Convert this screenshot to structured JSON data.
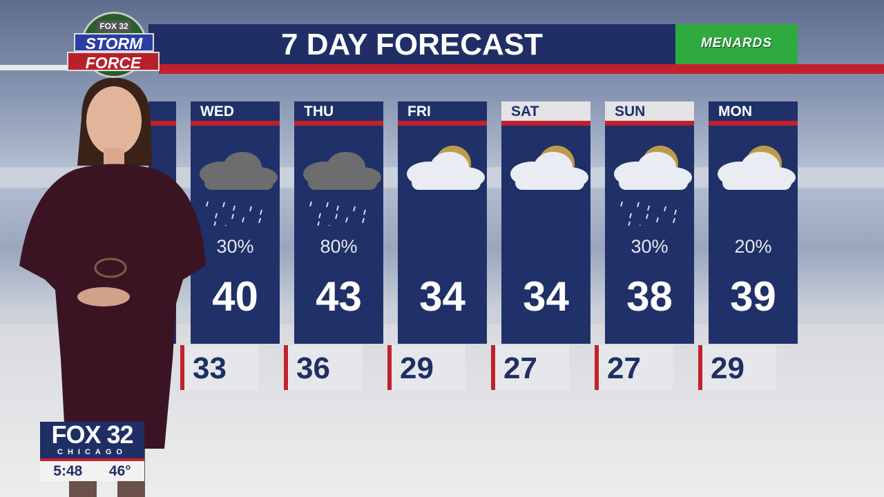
{
  "header": {
    "title": "7 DAY FORECAST",
    "sponsor": "MENARDS",
    "logo": {
      "top": "FOX 32",
      "line1": "STORM",
      "line2": "FORCE"
    }
  },
  "days": [
    {
      "day": "WED",
      "icon": "rain-cloud-icon",
      "pop": "30%",
      "high": "40",
      "low": "33",
      "weekend": false
    },
    {
      "day": "THU",
      "icon": "rain-snow-cloud-icon",
      "pop": "80%",
      "high": "43",
      "low": "36",
      "weekend": false
    },
    {
      "day": "FRI",
      "icon": "partly-cloudy-icon",
      "pop": "",
      "high": "34",
      "low": "29",
      "weekend": false
    },
    {
      "day": "SAT",
      "icon": "partly-cloudy-icon",
      "pop": "",
      "high": "34",
      "low": "27",
      "weekend": true
    },
    {
      "day": "SUN",
      "icon": "partly-cloudy-snow-icon",
      "pop": "30%",
      "high": "38",
      "low": "27",
      "weekend": true
    },
    {
      "day": "MON",
      "icon": "partly-cloudy-icon",
      "pop": "20%",
      "high": "39",
      "low": "29",
      "weekend": false
    }
  ],
  "station_bug": {
    "name": "FOX 32",
    "city": "CHICAGO",
    "time": "5:48",
    "temp": "46°"
  },
  "colors": {
    "navy": "#1f2f66",
    "red": "#c3202d",
    "sponsor_green": "#2faa3e"
  }
}
